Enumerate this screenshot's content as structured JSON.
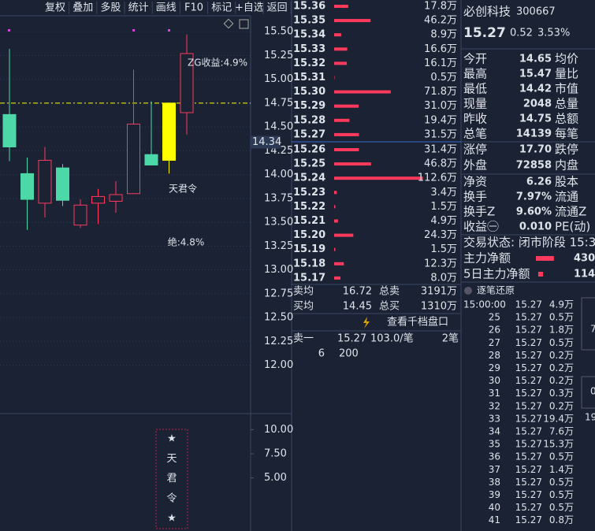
{
  "toolbar": [
    "复权",
    "叠加",
    "多股",
    "统计",
    "画线",
    "F10",
    "标记",
    "+自选",
    "返回"
  ],
  "price_chart": {
    "type": "candlestick",
    "up_color": "#ff3a5c",
    "down_color": "#4cd8a7",
    "candles": [
      {
        "open": 14.63,
        "high": 15.32,
        "low": 14.14,
        "close": 14.29
      },
      {
        "open": 14.01,
        "high": 14.18,
        "low": 13.42,
        "close": 13.74
      },
      {
        "open": 13.7,
        "high": 14.29,
        "low": 13.55,
        "close": 14.15
      },
      {
        "open": 14.07,
        "high": 14.11,
        "low": 13.67,
        "close": 13.73
      },
      {
        "open": 13.47,
        "high": 13.74,
        "low": 13.44,
        "close": 13.68
      },
      {
        "open": 13.7,
        "high": 13.85,
        "low": 13.48,
        "close": 13.77
      },
      {
        "open": 13.72,
        "high": 13.93,
        "low": 13.6,
        "close": 13.79
      },
      {
        "open": 13.8,
        "high": 15.1,
        "low": 13.8,
        "close": 14.53
      },
      {
        "open": 14.21,
        "high": 14.77,
        "low": 14.1,
        "close": 14.1
      },
      {
        "open": 14.15,
        "high": 14.75,
        "low": 14.01,
        "close": 14.75,
        "color": "#ffff00"
      },
      {
        "open": 14.65,
        "high": 15.47,
        "low": 14.42,
        "close": 15.27
      }
    ],
    "ylim": [
      11.5,
      15.65
    ],
    "yticks": [
      {
        "value": 15.5,
        "label": "15.50"
      },
      {
        "value": 15.25,
        "label": "15.25"
      },
      {
        "value": 15,
        "label": "15.00"
      },
      {
        "value": 14.75,
        "label": "14.75"
      },
      {
        "value": 14.5,
        "label": "14.50"
      },
      {
        "value": 14.25,
        "label": "14.25"
      },
      {
        "value": 14,
        "label": "14.00"
      },
      {
        "value": 13.75,
        "label": "13.75"
      },
      {
        "value": 13.5,
        "label": "13.50"
      },
      {
        "value": 13.25,
        "label": "13.25"
      },
      {
        "value": 13,
        "label": "13.00"
      },
      {
        "value": 12.75,
        "label": "12.75"
      },
      {
        "value": 12.5,
        "label": "12.50"
      },
      {
        "value": 12.25,
        "label": "12.25"
      },
      {
        "value": 12,
        "label": "12.00"
      }
    ],
    "cursor_price": 14.34,
    "ref_line": 14.75,
    "annotations": [
      "ZG收益:4.9%",
      "天君令",
      "绝:4.8%"
    ]
  },
  "indicator": {
    "ylim": [
      -0.5,
      11.5
    ],
    "yticks": [
      {
        "value": 10,
        "label": "10.00"
      },
      {
        "value": 7.5,
        "label": "7.50"
      },
      {
        "value": 5,
        "label": "5.00"
      }
    ],
    "signal": [
      "★",
      "天",
      "君",
      "令",
      "★"
    ]
  },
  "order_book": {
    "sell": {
      "prices": [
        "15.36",
        "15.35",
        "15.34",
        "15.33",
        "15.32",
        "15.31",
        "15.30",
        "15.29",
        "15.28",
        "15.27"
      ],
      "values": [
        17.8,
        46.2,
        8.9,
        16.6,
        16.1,
        0.5,
        71.8,
        31.0,
        19.4,
        31.5
      ],
      "value_labels": [
        "17.8万",
        "46.2万",
        "8.9万",
        "16.6万",
        "16.1万",
        "0.5万",
        "71.8万",
        "31.0万",
        "19.4万",
        "31.5万"
      ]
    },
    "buy": {
      "prices": [
        "15.26",
        "15.25",
        "15.24",
        "15.23",
        "15.22",
        "15.21",
        "15.20",
        "15.19",
        "15.18",
        "15.17"
      ],
      "values": [
        31.4,
        46.8,
        112.6,
        3.4,
        1.5,
        4.9,
        24.3,
        1.5,
        12.3,
        8.0
      ],
      "value_labels": [
        "31.4万",
        "46.8万",
        "112.6万",
        "3.4万",
        "1.5万",
        "4.9万",
        "24.3万",
        "1.5万",
        "12.3万",
        "8.0万"
      ]
    },
    "summary": [
      [
        "卖均",
        "16.72",
        "总卖",
        "3191万"
      ],
      [
        "买均",
        "14.45",
        "总买",
        "1310万"
      ]
    ],
    "link": "查看千档盘口",
    "level1": [
      "卖一",
      "15.27",
      "103.0/笔",
      "2笔"
    ],
    "level1_detail": [
      "6",
      "200"
    ]
  },
  "quote": {
    "name": "必创科技",
    "code": "300667",
    "price": "15.27",
    "change": "0.52",
    "pct": "3.53%",
    "rows": [
      [
        "今开",
        "14.65",
        "均价",
        "#4cd8a7"
      ],
      [
        "最高",
        "15.47",
        "量比",
        "#ff3a5c"
      ],
      [
        "最低",
        "14.42",
        "市值",
        "#4cd8a7"
      ],
      [
        "现量",
        "2048",
        "总量",
        "#e040e0"
      ],
      [
        "昨收",
        "14.75",
        "总额",
        "#ffffff"
      ],
      [
        "总笔",
        "14139",
        "每笔",
        "#ffffff"
      ],
      [
        "涨停",
        "17.70",
        "跌停",
        "#ff3a5c"
      ],
      [
        "外盘",
        "72858",
        "内盘",
        "#ff3a5c"
      ],
      [
        "净资",
        "6.26",
        "股本",
        "#ffffff"
      ],
      [
        "换手",
        "7.97%",
        "流通",
        "#ffffff"
      ],
      [
        "换手Z",
        "9.60%",
        "流通Z",
        "#ffffff"
      ],
      [
        "收益㊀",
        "0.010",
        "PE(动)",
        "#ffffff"
      ]
    ],
    "status": "交易状态: 闭市阶段 15:3",
    "flows": [
      {
        "name": "主力净额",
        "value": 430,
        "label": "430."
      },
      {
        "name": "5日主力净额",
        "value": 114,
        "label": "114."
      }
    ]
  },
  "ticks": {
    "title": "逐笔还原",
    "times": [
      "15:00:00",
      "25",
      "26",
      "27",
      "28",
      "29",
      "30",
      "31",
      "32",
      "33",
      "34",
      "35",
      "36",
      "37",
      "38",
      "39",
      "40",
      "41"
    ],
    "price": "15.27",
    "volumes": [
      "4.9万",
      "0.5万",
      "1.8万",
      "0.5万",
      "0.2万",
      "0.2万",
      "0.2万",
      "0.3万",
      "0.2万",
      "19.4万",
      "7.6万",
      "15.3万",
      "0.5万",
      "1.4万",
      "0.5万",
      "0.5万",
      "0.5万",
      "0.8万"
    ],
    "edge": [
      "7",
      "0",
      "19"
    ]
  }
}
